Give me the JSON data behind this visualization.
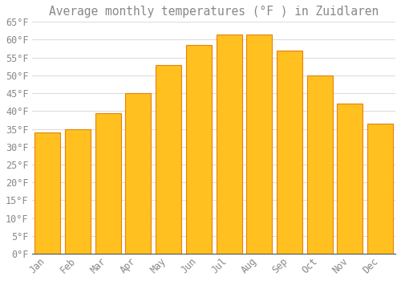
{
  "title": "Average monthly temperatures (°F ) in Zuidlaren",
  "months": [
    "Jan",
    "Feb",
    "Mar",
    "Apr",
    "May",
    "Jun",
    "Jul",
    "Aug",
    "Sep",
    "Oct",
    "Nov",
    "Dec"
  ],
  "values": [
    34,
    35,
    39.5,
    45,
    53,
    58.5,
    61.5,
    61.5,
    57,
    50,
    42,
    36.5
  ],
  "bar_color": "#FFC020",
  "bar_edge_color": "#E8820C",
  "background_color": "#FFFFFF",
  "grid_color": "#DDDDDD",
  "text_color": "#888888",
  "ylim": [
    0,
    65
  ],
  "yticks": [
    0,
    5,
    10,
    15,
    20,
    25,
    30,
    35,
    40,
    45,
    50,
    55,
    60,
    65
  ],
  "title_fontsize": 10.5,
  "tick_fontsize": 8.5,
  "bar_width": 0.85
}
